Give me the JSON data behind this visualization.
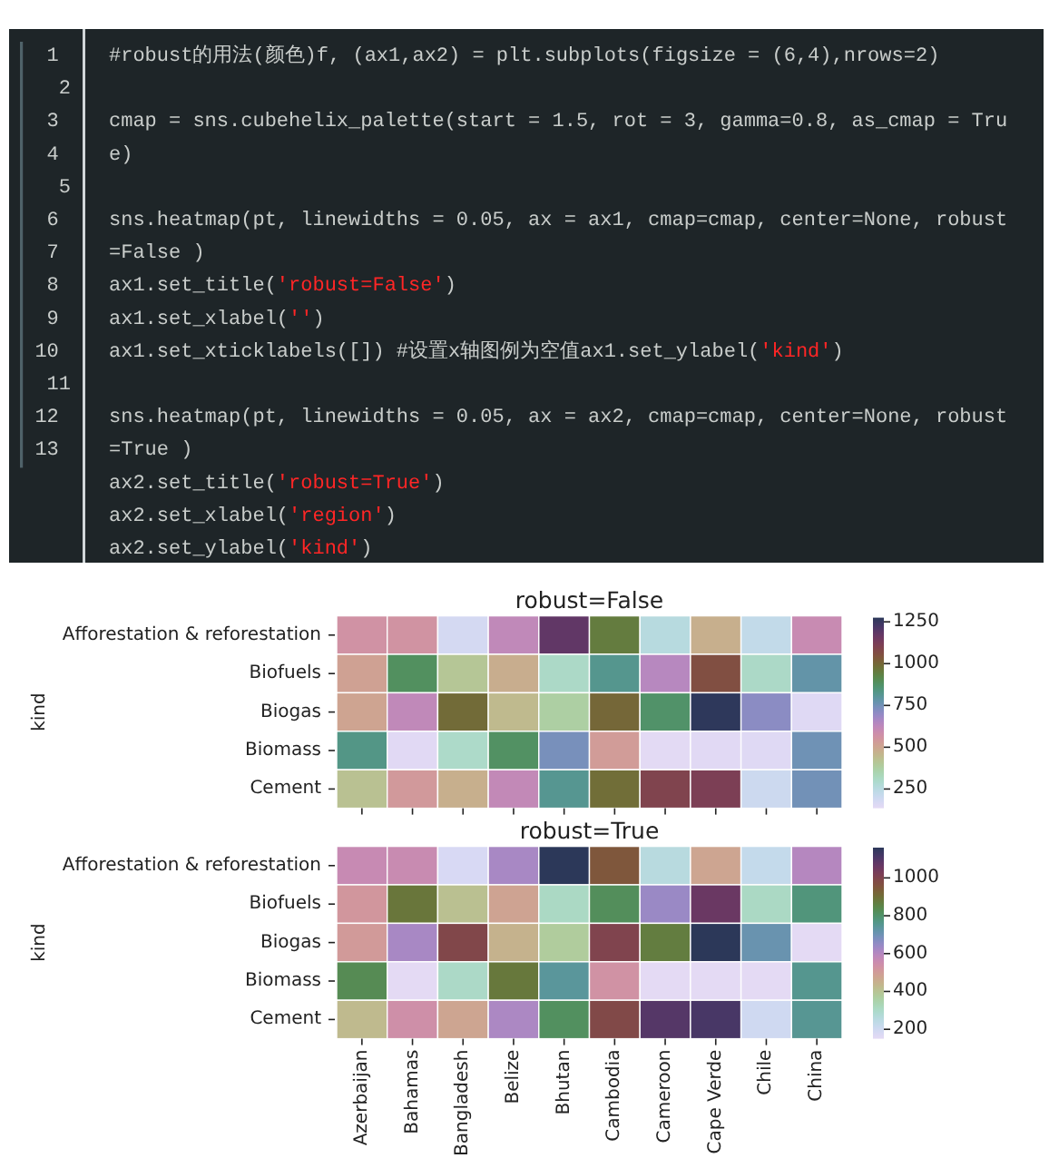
{
  "chart_data": [
    {
      "type": "other",
      "annotations": [
        "1 #robust的用法(颜色)f, (ax1,ax2) = plt.subplots(figsize = (6,4),nrows=2)",
        "2",
        "3 cmap = sns.cubehelix_palette(start = 1.5, rot = 3, gamma=0.8, as_cmap = Tru",
        "4 e)",
        "5",
        "6 sns.heatmap(pt, linewidths = 0.05, ax = ax1, cmap=cmap, center=None, robust",
        "7 =False )",
        "8 ax1.set_title('robust=False')",
        "9 ax1.set_xlabel('')",
        "10 ax1.set_xticklabels([]) #设置x轴图例为空值ax1.set_ylabel('kind')",
        "11",
        "12 sns.heatmap(pt, linewidths = 0.05, ax = ax2, cmap=cmap, center=None, robust",
        "13 =True )",
        "ax2.set_title('robust=True')",
        "ax2.set_xlabel('region')",
        "ax2.set_ylabel('kind')"
      ]
    },
    {
      "type": "heatmap",
      "title": "robust=False",
      "ylabel": "kind",
      "categories": [
        null,
        null,
        null,
        null,
        null,
        null,
        null,
        null,
        null,
        null
      ],
      "y_categories": [
        "Afforestation & reforestation",
        "Biofuels",
        "Biogas",
        "Biomass",
        "Cement"
      ],
      "cells": [
        [
          565,
          560,
          180,
          620,
          1180,
          950,
          255,
          475,
          225,
          600
        ],
        [
          515,
          885,
          410,
          480,
          305,
          820,
          640,
          1060,
          305,
          780
        ],
        [
          505,
          620,
          990,
          445,
          375,
          1000,
          870,
          1270,
          710,
          150
        ],
        [
          830,
          145,
          300,
          880,
          740,
          530,
          140,
          145,
          150,
          755
        ],
        [
          425,
          540,
          475,
          615,
          815,
          985,
          1095,
          1115,
          200,
          750
        ]
      ],
      "clim": [
        135,
        1275
      ],
      "cticks": [
        250,
        500,
        750,
        1000,
        1250
      ]
    },
    {
      "type": "heatmap",
      "title": "robust=True",
      "ylabel": "kind",
      "categories": [
        "Azerbaijan",
        "Bahamas",
        "Bangladesh",
        "Belize",
        "Bhutan",
        "Cambodia",
        "Cameroon",
        "Cape Verde",
        "Chile",
        "China"
      ],
      "y_categories": [
        "Afforestation & reforestation",
        "Biofuels",
        "Biogas",
        "Biomass",
        "Cement"
      ],
      "cells": [
        [
          565,
          560,
          180,
          620,
          1180,
          950,
          255,
          475,
          225,
          600
        ],
        [
          515,
          885,
          410,
          480,
          305,
          820,
          640,
          1060,
          305,
          780
        ],
        [
          505,
          620,
          990,
          445,
          375,
          1000,
          870,
          1270,
          710,
          150
        ],
        [
          830,
          145,
          300,
          880,
          740,
          530,
          140,
          145,
          150,
          755
        ],
        [
          425,
          540,
          475,
          615,
          815,
          985,
          1095,
          1115,
          200,
          750
        ]
      ],
      "clim": [
        150,
        1160
      ],
      "cticks": [
        200,
        400,
        600,
        800,
        1000
      ]
    }
  ]
}
